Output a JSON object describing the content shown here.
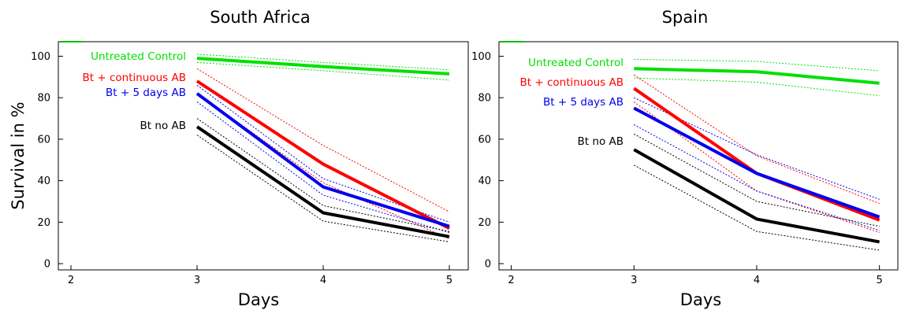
{
  "chart_data": [
    {
      "type": "line",
      "title": "South Africa",
      "xlabel": "Days",
      "ylabel": "Survival in %",
      "xlim": [
        1.9,
        5.15
      ],
      "ylim": [
        -3,
        107
      ],
      "xticks": [
        2,
        3,
        4,
        5
      ],
      "yticks": [
        0,
        20,
        40,
        60,
        80,
        100
      ],
      "x": [
        3,
        4,
        5
      ],
      "series": [
        {
          "name": "Untreated Control",
          "color": "#00e000",
          "values": [
            99,
            95,
            91.5
          ],
          "ci_upper": [
            101,
            97,
            93.5
          ],
          "ci_lower": [
            97,
            93,
            88.5
          ]
        },
        {
          "name": "Bt + continuous AB",
          "color": "#ff0000",
          "values": [
            88,
            48,
            17
          ],
          "ci_upper": [
            94,
            57,
            25
          ],
          "ci_lower": [
            82,
            39,
            12
          ]
        },
        {
          "name": "Bt + 5 days AB",
          "color": "#0000ee",
          "values": [
            82,
            37,
            18
          ],
          "ci_upper": [
            86,
            41,
            20
          ],
          "ci_lower": [
            78,
            33,
            15
          ]
        },
        {
          "name": "Bt no AB",
          "color": "#000000",
          "values": [
            66,
            24.5,
            13
          ],
          "ci_upper": [
            70,
            28,
            15.5
          ],
          "ci_lower": [
            62,
            20.5,
            10.5
          ]
        }
      ]
    },
    {
      "type": "line",
      "title": "Spain",
      "xlabel": "Days",
      "ylabel": "",
      "xlim": [
        1.9,
        5.15
      ],
      "ylim": [
        -3,
        107
      ],
      "xticks": [
        2,
        3,
        4,
        5
      ],
      "yticks": [
        0,
        20,
        40,
        60,
        80,
        100
      ],
      "x": [
        3,
        4,
        5
      ],
      "series": [
        {
          "name": "Untreated Control",
          "color": "#00e000",
          "values": [
            94,
            92.5,
            87
          ],
          "ci_upper": [
            98.5,
            97.5,
            93
          ],
          "ci_lower": [
            89.5,
            87.5,
            81
          ]
        },
        {
          "name": "Bt + continuous AB",
          "color": "#ff0000",
          "values": [
            84.5,
            43.5,
            21
          ],
          "ci_upper": [
            91,
            52,
            29
          ],
          "ci_lower": [
            78,
            35,
            15
          ]
        },
        {
          "name": "Bt + 5 days AB",
          "color": "#0000ee",
          "values": [
            75,
            43.5,
            22.5
          ],
          "ci_upper": [
            80,
            52.5,
            31
          ],
          "ci_lower": [
            67,
            35,
            16
          ]
        },
        {
          "name": "Bt no AB",
          "color": "#000000",
          "values": [
            55,
            21.5,
            10.5
          ],
          "ci_upper": [
            62.5,
            30,
            18
          ],
          "ci_lower": [
            47.5,
            15.5,
            6.5
          ]
        }
      ]
    }
  ]
}
